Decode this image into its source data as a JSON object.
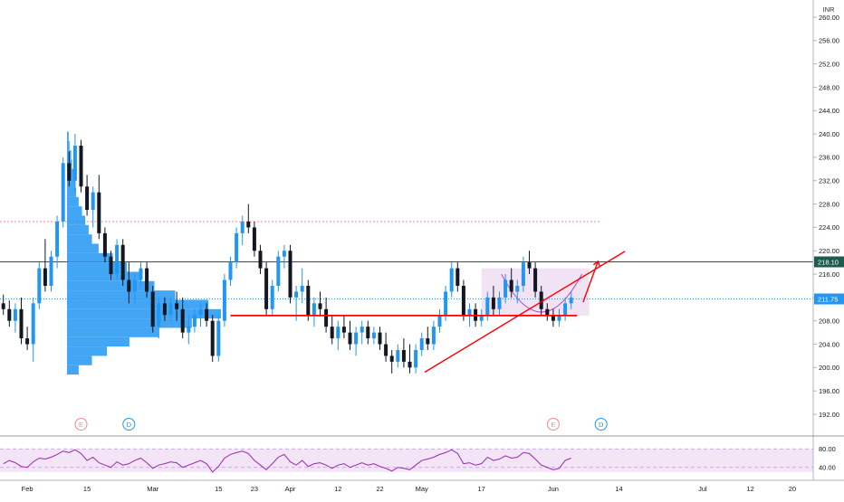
{
  "chart_data": {
    "type": "candlestick",
    "currency": "INR",
    "price_axis": {
      "ticks": [
        192,
        196,
        200,
        204,
        208,
        212,
        216,
        220,
        224,
        228,
        232,
        236,
        240,
        244,
        248,
        252,
        256,
        260
      ],
      "labels": [
        "192.00",
        "196.00",
        "200.00",
        "204.00",
        "208.00",
        "212.00",
        "216.00",
        "220.00",
        "224.00",
        "228.00",
        "232.00",
        "236.00",
        "240.00",
        "244.00",
        "248.00",
        "252.00",
        "256.00",
        "260.00"
      ],
      "range": [
        188.5,
        261.5
      ]
    },
    "time_axis": {
      "ticks": [
        {
          "label": "Feb",
          "index": 4
        },
        {
          "label": "15",
          "index": 14
        },
        {
          "label": "Mar",
          "index": 25
        },
        {
          "label": "15",
          "index": 36
        },
        {
          "label": "23",
          "index": 42
        },
        {
          "label": "Apr",
          "index": 48
        },
        {
          "label": "12",
          "index": 56
        },
        {
          "label": "22",
          "index": 63
        },
        {
          "label": "May",
          "index": 70
        },
        {
          "label": "17",
          "index": 80
        },
        {
          "label": "Jun",
          "index": 92
        },
        {
          "label": "14",
          "index": 103
        },
        {
          "label": "Jul",
          "index": 117
        },
        {
          "label": "12",
          "index": 125
        },
        {
          "label": "20",
          "index": 132
        }
      ],
      "range": [
        0,
        135
      ]
    },
    "last_price_label": "211.75",
    "level_label": "218.10",
    "levels": [
      {
        "name": "resistance-dotted",
        "value": 225.0,
        "color": "#ff5252"
      },
      {
        "name": "horizontal-level",
        "value": 218.1,
        "color": "#1e5c4f"
      },
      {
        "name": "last-price",
        "value": 211.75,
        "color": "#2196f3"
      },
      {
        "name": "support",
        "value": 208.9,
        "color": "#ff0000"
      }
    ],
    "candles": [
      [
        211,
        212.5,
        209,
        210
      ],
      [
        210,
        211.5,
        207,
        208
      ],
      [
        208,
        211,
        206,
        210
      ],
      [
        210,
        212,
        204,
        205
      ],
      [
        205,
        207,
        203,
        204
      ],
      [
        204,
        212,
        201,
        211
      ],
      [
        211,
        218,
        210,
        217
      ],
      [
        217,
        222,
        213,
        214
      ],
      [
        214,
        220,
        213,
        219
      ],
      [
        219,
        226,
        217,
        225
      ],
      [
        225,
        236,
        224,
        235
      ],
      [
        235,
        237,
        231,
        232
      ],
      [
        232,
        240,
        230,
        238
      ],
      [
        238,
        239,
        230,
        231
      ],
      [
        231,
        233,
        226,
        227
      ],
      [
        227,
        231,
        224,
        230
      ],
      [
        230,
        233,
        222,
        223
      ],
      [
        223,
        224,
        218,
        219
      ],
      [
        219,
        220,
        215,
        216
      ],
      [
        216,
        222,
        215,
        221
      ],
      [
        221,
        222,
        214,
        215
      ],
      [
        215,
        218,
        211,
        213
      ],
      [
        213,
        216,
        211,
        215
      ],
      [
        215,
        218,
        214,
        217
      ],
      [
        217,
        218,
        212,
        213
      ],
      [
        213,
        214,
        206,
        207
      ],
      [
        207,
        212,
        205,
        211
      ],
      [
        211,
        212,
        208,
        209
      ],
      [
        209,
        212,
        208,
        211
      ],
      [
        211,
        213,
        208,
        210
      ],
      [
        210,
        212,
        205,
        206
      ],
      [
        206,
        209,
        204,
        207
      ],
      [
        207,
        210,
        206,
        209
      ],
      [
        209,
        211,
        207,
        210
      ],
      [
        210,
        211,
        207,
        208
      ],
      [
        208,
        209,
        201,
        202
      ],
      [
        202,
        209,
        201,
        208
      ],
      [
        208,
        216,
        207,
        215
      ],
      [
        215,
        219,
        214,
        218
      ],
      [
        218,
        224,
        217,
        223
      ],
      [
        223,
        226,
        221,
        225
      ],
      [
        225,
        228,
        223,
        224
      ],
      [
        224,
        225,
        219,
        220
      ],
      [
        220,
        221,
        216,
        217
      ],
      [
        217,
        218,
        209,
        210
      ],
      [
        210,
        215,
        209,
        214
      ],
      [
        214,
        220,
        213,
        219
      ],
      [
        219,
        221,
        217,
        220
      ],
      [
        220,
        221,
        211,
        212
      ],
      [
        212,
        214,
        208,
        213
      ],
      [
        213,
        217,
        211,
        214
      ],
      [
        214,
        215,
        208,
        209
      ],
      [
        209,
        212,
        207,
        211
      ],
      [
        211,
        213,
        209,
        210
      ],
      [
        210,
        212,
        206,
        207
      ],
      [
        207,
        209,
        204,
        205
      ],
      [
        205,
        208,
        203,
        207
      ],
      [
        207,
        209,
        205,
        206
      ],
      [
        206,
        208,
        203,
        204
      ],
      [
        204,
        207,
        202,
        206
      ],
      [
        206,
        208,
        204,
        207
      ],
      [
        207,
        208,
        204,
        205
      ],
      [
        205,
        207,
        204,
        206
      ],
      [
        206,
        207,
        203,
        204
      ],
      [
        204,
        206,
        201,
        202
      ],
      [
        202,
        203,
        199,
        201
      ],
      [
        201,
        204,
        200,
        203
      ],
      [
        203,
        205,
        200,
        201
      ],
      [
        201,
        204,
        199,
        200
      ],
      [
        200,
        204,
        199,
        203
      ],
      [
        203,
        206,
        202,
        205
      ],
      [
        205,
        207,
        203,
        204
      ],
      [
        204,
        208,
        203,
        207
      ],
      [
        207,
        210,
        206,
        209
      ],
      [
        209,
        214,
        208,
        213
      ],
      [
        213,
        218,
        212,
        217
      ],
      [
        217,
        218,
        213,
        214
      ],
      [
        214,
        215,
        208,
        209
      ],
      [
        209,
        211,
        207,
        210
      ],
      [
        210,
        211,
        207,
        208
      ],
      [
        208,
        210,
        207,
        209
      ],
      [
        209,
        213,
        208,
        212
      ],
      [
        212,
        214,
        209,
        210
      ],
      [
        210,
        213,
        209,
        212
      ],
      [
        212,
        216,
        211,
        215
      ],
      [
        215,
        217,
        212,
        213
      ],
      [
        213,
        215,
        211,
        214
      ],
      [
        214,
        219,
        213,
        218
      ],
      [
        218,
        220,
        216,
        217
      ],
      [
        217,
        218,
        212,
        213
      ],
      [
        213,
        214,
        209,
        210
      ],
      [
        210,
        211,
        208,
        209
      ],
      [
        209,
        210,
        207,
        208
      ],
      [
        208,
        210,
        207,
        209
      ],
      [
        209,
        212,
        208,
        211
      ],
      [
        211,
        213,
        210,
        212
      ]
    ],
    "volume_profile": [
      {
        "price": 239.6,
        "volume": 2
      },
      {
        "price": 238.0,
        "volume": 3
      },
      {
        "price": 236.4,
        "volume": 5
      },
      {
        "price": 234.8,
        "volume": 6
      },
      {
        "price": 233.2,
        "volume": 8
      },
      {
        "price": 231.6,
        "volume": 10
      },
      {
        "price": 230.0,
        "volume": 11
      },
      {
        "price": 228.4,
        "volume": 14
      },
      {
        "price": 226.8,
        "volume": 18
      },
      {
        "price": 225.2,
        "volume": 22
      },
      {
        "price": 223.6,
        "volume": 26
      },
      {
        "price": 222.0,
        "volume": 30
      },
      {
        "price": 220.4,
        "volume": 38
      },
      {
        "price": 218.8,
        "volume": 55
      },
      {
        "price": 217.2,
        "volume": 72
      },
      {
        "price": 215.6,
        "volume": 88
      },
      {
        "price": 214.0,
        "volume": 105
      },
      {
        "price": 212.4,
        "volume": 130
      },
      {
        "price": 210.8,
        "volume": 170
      },
      {
        "price": 209.2,
        "volume": 185
      },
      {
        "price": 207.6,
        "volume": 150
      },
      {
        "price": 206.0,
        "volume": 110
      },
      {
        "price": 204.4,
        "volume": 75
      },
      {
        "price": 202.8,
        "volume": 48
      },
      {
        "price": 201.2,
        "volume": 30
      },
      {
        "price": 199.6,
        "volume": 14
      }
    ],
    "trendlines": [
      {
        "name": "rising-trendline",
        "from": [
          70.5,
          199.2
        ],
        "to": [
          104,
          219.9
        ],
        "color": "#ff0000"
      },
      {
        "name": "support-line",
        "from": [
          38,
          208.9
        ],
        "to": [
          96,
          208.9
        ],
        "color": "#ff0000"
      }
    ],
    "rectangle": {
      "x": [
        80,
        98
      ],
      "y": [
        208.9,
        217.0
      ],
      "color": "#e1bee7"
    },
    "projection_arrow": {
      "from": [
        97,
        211.2
      ],
      "to": [
        99.5,
        218.2
      ],
      "color": "#ff0000"
    },
    "event_markers": [
      {
        "label": "E",
        "index": 13,
        "color": "#f28b82"
      },
      {
        "label": "D",
        "index": 21,
        "color": "#2196f3"
      },
      {
        "label": "E",
        "index": 92,
        "color": "#f28b82"
      },
      {
        "label": "D",
        "index": 100,
        "color": "#2196f3"
      }
    ],
    "rsi": {
      "ticks": [
        40,
        80
      ],
      "labels": [
        "40.00",
        "80.00"
      ],
      "range": [
        20,
        100
      ],
      "band": [
        30,
        70
      ],
      "values": [
        48,
        55,
        50,
        42,
        40,
        52,
        60,
        58,
        62,
        68,
        75,
        72,
        78,
        70,
        55,
        62,
        50,
        45,
        40,
        52,
        45,
        48,
        55,
        60,
        50,
        38,
        45,
        48,
        52,
        50,
        40,
        45,
        50,
        55,
        48,
        30,
        42,
        60,
        68,
        72,
        75,
        70,
        55,
        45,
        35,
        48,
        62,
        68,
        52,
        45,
        55,
        42,
        48,
        50,
        45,
        38,
        45,
        48,
        40,
        45,
        50,
        45,
        48,
        42,
        38,
        32,
        40,
        38,
        35,
        45,
        55,
        58,
        62,
        68,
        72,
        78,
        70,
        48,
        50,
        45,
        48,
        62,
        55,
        58,
        65,
        60,
        62,
        72,
        70,
        58,
        45,
        40,
        35,
        38,
        55,
        60
      ],
      "color": "#9c27b0"
    }
  }
}
